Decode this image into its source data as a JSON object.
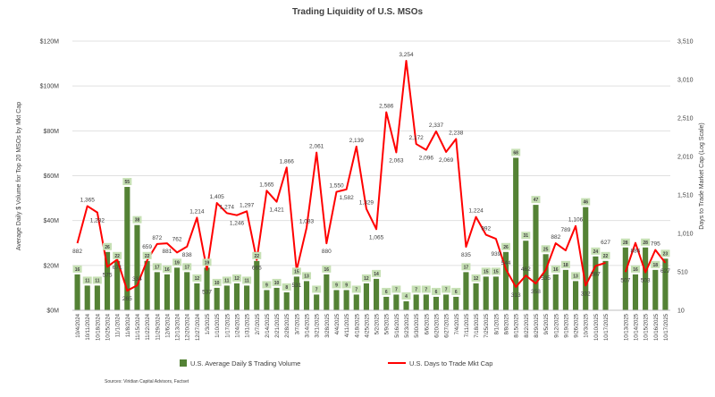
{
  "chart_data": {
    "type": "bar+line",
    "title": "Trading Liquidity of U.S. MSOs",
    "ylabel": "Average Daily $ Volume for Top 20 MSOs by Mkt Cap",
    "y2label": "Days to Trade Market Cap (Log Scale)",
    "ylim": [
      0,
      120
    ],
    "y2lim": [
      10,
      3510
    ],
    "yticks": [
      "$0M",
      "$20M",
      "$40M",
      "$60M",
      "$80M",
      "$100M",
      "$120M"
    ],
    "y2ticks": [
      "10",
      "510",
      "1,010",
      "1,510",
      "2,010",
      "2,510",
      "3,010",
      "3,510"
    ],
    "categories": [
      "10/4/2024",
      "10/11/2024",
      "10/18/2024",
      "10/25/2024",
      "11/1/2024",
      "11/8/2024",
      "11/15/2024",
      "11/22/2024",
      "11/29/2024",
      "12/6/2024",
      "12/13/2024",
      "12/20/2024",
      "12/27/2024",
      "1/3/2025",
      "1/10/2025",
      "1/17/2025",
      "1/24/2025",
      "1/31/2025",
      "2/7/2025",
      "2/14/2025",
      "2/21/2025",
      "2/28/2025",
      "3/7/2025",
      "3/14/2025",
      "3/21/2025",
      "3/28/2025",
      "4/4/2025",
      "4/11/2025",
      "4/18/2025",
      "4/25/2025",
      "5/2/2025",
      "5/9/2025",
      "5/16/2025",
      "5/23/2025",
      "5/30/2025",
      "6/6/2025",
      "6/20/2025",
      "6/27/2025",
      "7/4/2025",
      "7/11/2025",
      "7/18/2025",
      "7/25/2025",
      "8/1/2025",
      "8/8/2025",
      "8/15/2025",
      "8/22/2025",
      "8/29/2025",
      "9/5/2025",
      "9/12/2025",
      "9/19/2025",
      "9/26/2025",
      "10/3/2025",
      "10/10/2025",
      "10/17/2025",
      "",
      "10/13/2025",
      "10/14/2025",
      "10/15/2025",
      "10/16/2025",
      "10/17/2025"
    ],
    "series": [
      {
        "name": "U.S. Average Daily $ Trading Volume",
        "type": "bar",
        "axis": "left",
        "color": "#548235",
        "values": [
          16,
          11,
          11,
          26,
          22,
          55,
          38,
          22,
          17,
          16,
          19,
          17,
          12,
          19,
          10,
          11,
          12,
          11,
          22,
          9,
          10,
          8,
          15,
          13,
          7,
          16,
          9,
          9,
          7,
          12,
          14,
          6,
          7,
          4,
          7,
          7,
          6,
          7,
          6,
          17,
          12,
          15,
          15,
          26,
          68,
          31,
          47,
          25,
          16,
          18,
          13,
          46,
          24,
          22,
          null,
          28,
          16,
          28,
          18,
          23
        ]
      },
      {
        "name": "U.S. Days to Trade Mkt Cap",
        "type": "line",
        "axis": "right",
        "color": "#ff0000",
        "values": [
          882,
          1365,
          1282,
          575,
          671,
          265,
          334,
          659,
          872,
          881,
          762,
          838,
          1214,
          537,
          1405,
          1274,
          1246,
          1297,
          665,
          1565,
          1421,
          1866,
          531,
          1083,
          2061,
          880,
          1550,
          1582,
          2139,
          1329,
          1065,
          2586,
          2063,
          3254,
          2172,
          2096,
          2337,
          2069,
          2238,
          835,
          1224,
          992,
          939,
          544,
          313,
          462,
          358,
          535,
          882,
          789,
          1106,
          332,
          587,
          627,
          null,
          507,
          886,
          503,
          795,
          627
        ]
      }
    ],
    "legend_position": "bottom",
    "grid": true
  },
  "source": "Sources: Viridian Capital Advisors, Factset"
}
